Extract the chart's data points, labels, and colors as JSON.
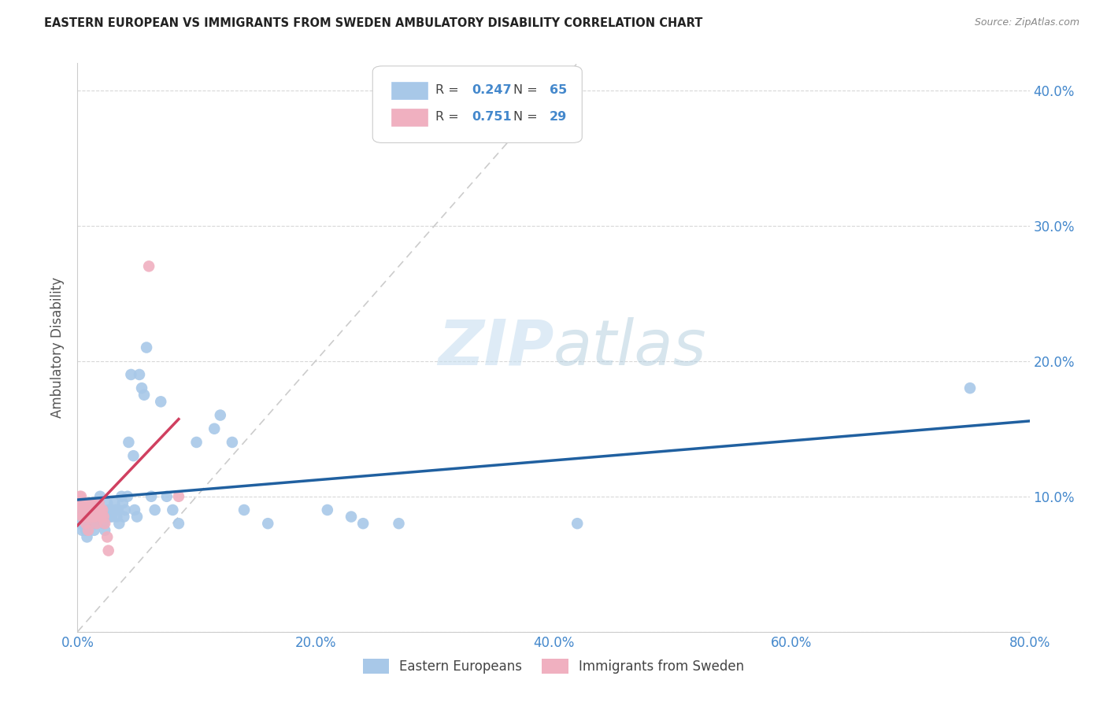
{
  "title": "EASTERN EUROPEAN VS IMMIGRANTS FROM SWEDEN AMBULATORY DISABILITY CORRELATION CHART",
  "source": "Source: ZipAtlas.com",
  "ylabel": "Ambulatory Disability",
  "xlim": [
    0.0,
    0.8
  ],
  "ylim": [
    0.0,
    0.42
  ],
  "xticks": [
    0.0,
    0.2,
    0.4,
    0.6,
    0.8
  ],
  "xticklabels": [
    "0.0%",
    "20.0%",
    "40.0%",
    "60.0%",
    "80.0%"
  ],
  "yticks": [
    0.0,
    0.1,
    0.2,
    0.3,
    0.4
  ],
  "yticklabels": [
    "",
    "10.0%",
    "20.0%",
    "30.0%",
    "40.0%"
  ],
  "background_color": "#ffffff",
  "grid_color": "#d8d8d8",
  "watermark": "ZIPatlas",
  "series1_name": "Eastern Europeans",
  "series1_color": "#a8c8e8",
  "series1_line_color": "#2060a0",
  "series1_R": 0.247,
  "series1_N": 65,
  "series2_name": "Immigrants from Sweden",
  "series2_color": "#f0b0c0",
  "series2_line_color": "#d04060",
  "series2_R": 0.751,
  "series2_N": 29,
  "diagonal_color": "#cccccc",
  "eastern_europeans_x": [
    0.002,
    0.003,
    0.004,
    0.005,
    0.005,
    0.006,
    0.007,
    0.007,
    0.008,
    0.01,
    0.011,
    0.012,
    0.013,
    0.014,
    0.014,
    0.015,
    0.016,
    0.018,
    0.019,
    0.02,
    0.021,
    0.022,
    0.023,
    0.025,
    0.026,
    0.027,
    0.028,
    0.029,
    0.031,
    0.032,
    0.033,
    0.034,
    0.035,
    0.037,
    0.038,
    0.039,
    0.04,
    0.042,
    0.043,
    0.045,
    0.047,
    0.048,
    0.05,
    0.052,
    0.054,
    0.056,
    0.058,
    0.062,
    0.065,
    0.07,
    0.075,
    0.08,
    0.085,
    0.1,
    0.115,
    0.12,
    0.13,
    0.14,
    0.16,
    0.21,
    0.23,
    0.24,
    0.27,
    0.42,
    0.75
  ],
  "eastern_europeans_y": [
    0.08,
    0.085,
    0.075,
    0.095,
    0.09,
    0.085,
    0.08,
    0.075,
    0.07,
    0.09,
    0.095,
    0.085,
    0.09,
    0.08,
    0.075,
    0.085,
    0.08,
    0.095,
    0.1,
    0.09,
    0.085,
    0.08,
    0.075,
    0.095,
    0.09,
    0.085,
    0.09,
    0.085,
    0.095,
    0.09,
    0.085,
    0.09,
    0.08,
    0.1,
    0.095,
    0.085,
    0.09,
    0.1,
    0.14,
    0.19,
    0.13,
    0.09,
    0.085,
    0.19,
    0.18,
    0.175,
    0.21,
    0.1,
    0.09,
    0.17,
    0.1,
    0.09,
    0.08,
    0.14,
    0.15,
    0.16,
    0.14,
    0.09,
    0.08,
    0.09,
    0.085,
    0.08,
    0.08,
    0.08,
    0.18
  ],
  "immigrants_sweden_x": [
    0.002,
    0.002,
    0.003,
    0.003,
    0.004,
    0.004,
    0.005,
    0.006,
    0.007,
    0.008,
    0.009,
    0.01,
    0.01,
    0.011,
    0.012,
    0.013,
    0.014,
    0.015,
    0.016,
    0.018,
    0.019,
    0.02,
    0.021,
    0.022,
    0.023,
    0.025,
    0.026,
    0.06,
    0.085
  ],
  "immigrants_sweden_y": [
    0.1,
    0.095,
    0.1,
    0.09,
    0.095,
    0.085,
    0.085,
    0.09,
    0.08,
    0.085,
    0.075,
    0.095,
    0.09,
    0.085,
    0.095,
    0.09,
    0.085,
    0.09,
    0.08,
    0.095,
    0.09,
    0.085,
    0.09,
    0.085,
    0.08,
    0.07,
    0.06,
    0.27,
    0.1
  ],
  "legend_R1": "0.247",
  "legend_N1": "65",
  "legend_R2": "0.751",
  "legend_N2": "29",
  "tick_color": "#4488cc",
  "label_color": "#555555",
  "title_color": "#222222",
  "source_color": "#888888"
}
